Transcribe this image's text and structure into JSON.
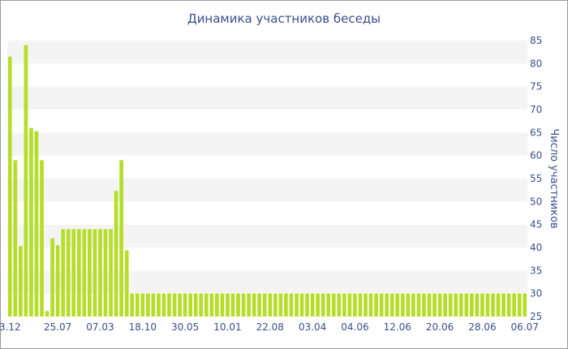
{
  "chart_data": {
    "type": "bar",
    "title": "Динамика участников беседы",
    "xlabel": "",
    "ylabel": "Число участников",
    "ylim": [
      25,
      85
    ],
    "y_ticks": [
      25,
      30,
      35,
      40,
      45,
      50,
      55,
      60,
      65,
      70,
      75,
      80,
      85
    ],
    "x_tick_labels": [
      "3.12",
      "25.07",
      "07.03",
      "18.10",
      "30.05",
      "10.01",
      "22.08",
      "03.04",
      "04.06",
      "12.06",
      "20.06",
      "28.06",
      "06.07"
    ],
    "x_tick_positions": [
      0,
      9,
      17,
      25,
      33,
      41,
      49,
      57,
      65,
      73,
      81,
      89,
      97
    ],
    "grid": true,
    "legend": "none",
    "bar_color": "#b5dd2a",
    "values": [
      81.5,
      59,
      40.3,
      84,
      66,
      65.3,
      59,
      26.2,
      42,
      40.5,
      44,
      44,
      44,
      44,
      44,
      44,
      44,
      44,
      44,
      44,
      52.3,
      59,
      39.4,
      30,
      30,
      30,
      30,
      30,
      30,
      30,
      30,
      30,
      30,
      30,
      30,
      30,
      30,
      30,
      30,
      30,
      30,
      30,
      30,
      30,
      30,
      30,
      30,
      30,
      30,
      30,
      30,
      30,
      30,
      30,
      30,
      30,
      30,
      30,
      30,
      30,
      30,
      30,
      30,
      30,
      30,
      30,
      30,
      30,
      30,
      30,
      30,
      30,
      30,
      30,
      30,
      30,
      30,
      30,
      30,
      30,
      30,
      30,
      30,
      30,
      30,
      30,
      30,
      30,
      30,
      30,
      30,
      30,
      30,
      30,
      30,
      30,
      30,
      30
    ]
  }
}
